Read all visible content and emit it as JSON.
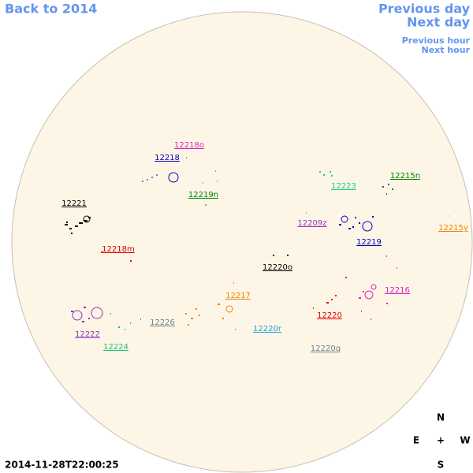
{
  "navigation": {
    "back": "Back to 2014",
    "previous_day": "Previous day",
    "next_day": "Next day",
    "previous_hour": "Previous hour",
    "next_hour": "Next hour"
  },
  "timestamp": "2014-11-28T22:00:25",
  "compass": {
    "north": "N",
    "east": "E",
    "center": "+",
    "west": "W",
    "south": "S"
  },
  "regions": [
    "12218o",
    "12218",
    "12219n",
    "12221",
    "12218m",
    "12223",
    "12215n",
    "12209z",
    "12219",
    "12215y",
    "12220o",
    "12217",
    "12216",
    "12220",
    "12226",
    "12220r",
    "12222",
    "12224",
    "12220q"
  ]
}
